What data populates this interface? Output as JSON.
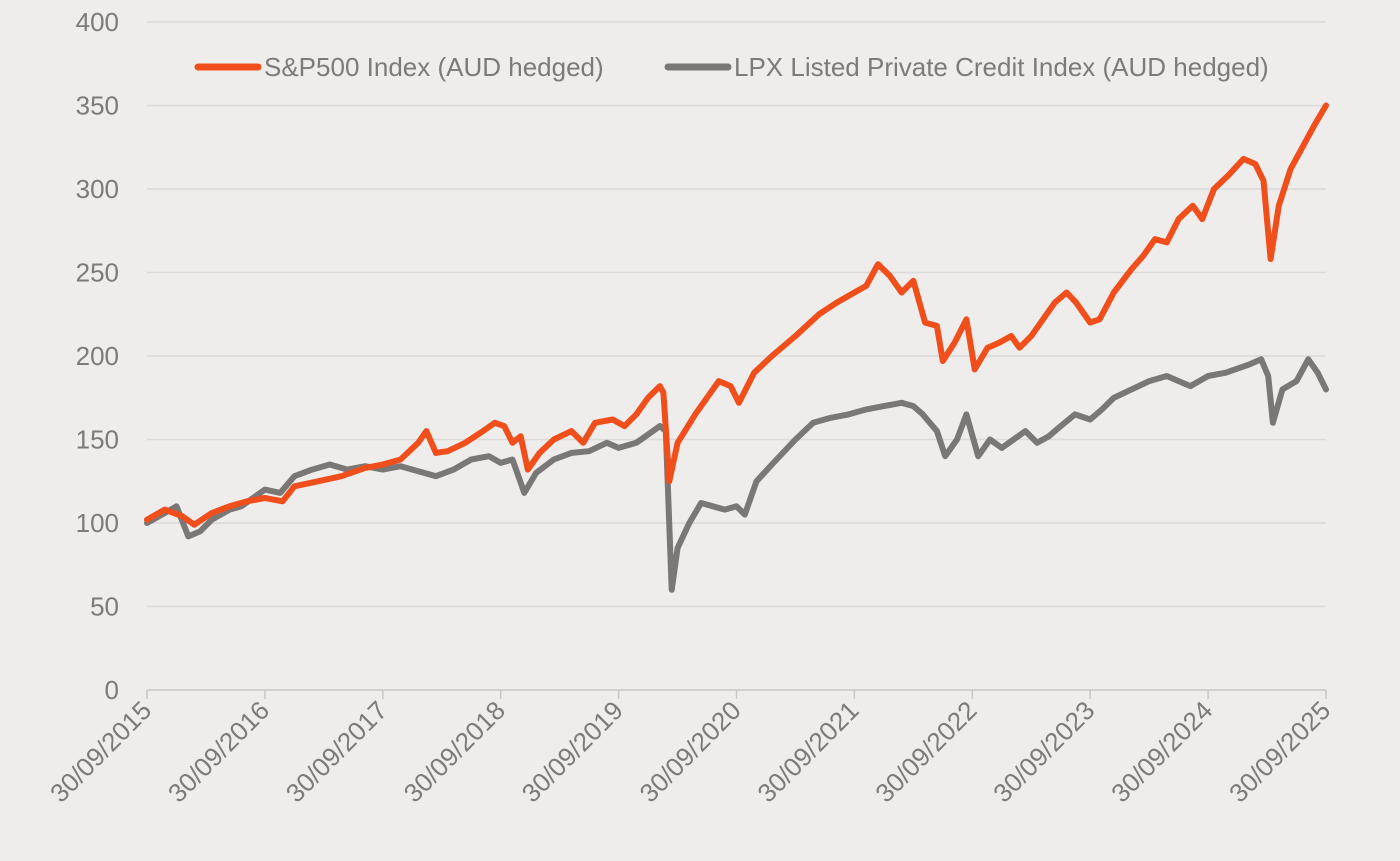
{
  "chart_data": {
    "type": "line",
    "title": "",
    "xlabel": "",
    "ylabel": "",
    "ylim": [
      0,
      400
    ],
    "y_ticks": [
      0,
      50,
      100,
      150,
      200,
      250,
      300,
      350,
      400
    ],
    "x_range": [
      2015.75,
      2025.75
    ],
    "x_ticks": [
      {
        "x": 2015.75,
        "label": "30/09/2015"
      },
      {
        "x": 2016.75,
        "label": "30/09/2016"
      },
      {
        "x": 2017.75,
        "label": "30/09/2017"
      },
      {
        "x": 2018.75,
        "label": "30/09/2018"
      },
      {
        "x": 2019.75,
        "label": "30/09/2019"
      },
      {
        "x": 2020.75,
        "label": "30/09/2020"
      },
      {
        "x": 2021.75,
        "label": "30/09/2021"
      },
      {
        "x": 2022.75,
        "label": "30/09/2022"
      },
      {
        "x": 2023.75,
        "label": "30/09/2023"
      },
      {
        "x": 2024.75,
        "label": "30/09/2024"
      },
      {
        "x": 2025.75,
        "label": "30/09/2025"
      }
    ],
    "grid": true,
    "legend_position": "top",
    "series": [
      {
        "name": "S&P500 Index  (AUD hedged)",
        "color": "#f04e1b",
        "points": [
          [
            2015.75,
            102
          ],
          [
            2015.9,
            108
          ],
          [
            2016.05,
            104
          ],
          [
            2016.15,
            99
          ],
          [
            2016.3,
            106
          ],
          [
            2016.45,
            110
          ],
          [
            2016.6,
            113
          ],
          [
            2016.75,
            115
          ],
          [
            2016.9,
            113
          ],
          [
            2017.0,
            122
          ],
          [
            2017.2,
            125
          ],
          [
            2017.4,
            128
          ],
          [
            2017.6,
            133
          ],
          [
            2017.75,
            135
          ],
          [
            2017.9,
            138
          ],
          [
            2018.05,
            148
          ],
          [
            2018.12,
            155
          ],
          [
            2018.2,
            142
          ],
          [
            2018.3,
            143
          ],
          [
            2018.45,
            148
          ],
          [
            2018.6,
            155
          ],
          [
            2018.7,
            160
          ],
          [
            2018.78,
            158
          ],
          [
            2018.85,
            148
          ],
          [
            2018.92,
            152
          ],
          [
            2018.98,
            132
          ],
          [
            2019.08,
            142
          ],
          [
            2019.2,
            150
          ],
          [
            2019.35,
            155
          ],
          [
            2019.45,
            148
          ],
          [
            2019.55,
            160
          ],
          [
            2019.7,
            162
          ],
          [
            2019.8,
            158
          ],
          [
            2019.9,
            165
          ],
          [
            2020.0,
            175
          ],
          [
            2020.1,
            182
          ],
          [
            2020.13,
            178
          ],
          [
            2020.18,
            125
          ],
          [
            2020.25,
            148
          ],
          [
            2020.4,
            165
          ],
          [
            2020.5,
            175
          ],
          [
            2020.6,
            185
          ],
          [
            2020.7,
            182
          ],
          [
            2020.77,
            172
          ],
          [
            2020.9,
            190
          ],
          [
            2021.05,
            200
          ],
          [
            2021.25,
            212
          ],
          [
            2021.45,
            225
          ],
          [
            2021.6,
            232
          ],
          [
            2021.75,
            238
          ],
          [
            2021.85,
            242
          ],
          [
            2021.95,
            255
          ],
          [
            2022.05,
            248
          ],
          [
            2022.15,
            238
          ],
          [
            2022.25,
            245
          ],
          [
            2022.35,
            220
          ],
          [
            2022.45,
            218
          ],
          [
            2022.5,
            197
          ],
          [
            2022.6,
            208
          ],
          [
            2022.7,
            222
          ],
          [
            2022.77,
            192
          ],
          [
            2022.88,
            205
          ],
          [
            2022.98,
            208
          ],
          [
            2023.08,
            212
          ],
          [
            2023.15,
            205
          ],
          [
            2023.25,
            212
          ],
          [
            2023.35,
            222
          ],
          [
            2023.45,
            232
          ],
          [
            2023.55,
            238
          ],
          [
            2023.63,
            232
          ],
          [
            2023.75,
            220
          ],
          [
            2023.83,
            222
          ],
          [
            2023.95,
            238
          ],
          [
            2024.1,
            252
          ],
          [
            2024.2,
            260
          ],
          [
            2024.3,
            270
          ],
          [
            2024.4,
            268
          ],
          [
            2024.5,
            282
          ],
          [
            2024.62,
            290
          ],
          [
            2024.7,
            282
          ],
          [
            2024.8,
            300
          ],
          [
            2024.92,
            308
          ],
          [
            2025.05,
            318
          ],
          [
            2025.15,
            315
          ],
          [
            2025.22,
            305
          ],
          [
            2025.28,
            258
          ],
          [
            2025.35,
            290
          ],
          [
            2025.45,
            312
          ],
          [
            2025.55,
            325
          ],
          [
            2025.65,
            338
          ],
          [
            2025.75,
            350
          ]
        ]
      },
      {
        "name": "LPX Listed Private Credit  Index (AUD hedged)",
        "color": "#7a7876",
        "points": [
          [
            2015.75,
            100
          ],
          [
            2015.9,
            106
          ],
          [
            2016.0,
            110
          ],
          [
            2016.1,
            92
          ],
          [
            2016.2,
            95
          ],
          [
            2016.3,
            102
          ],
          [
            2016.45,
            108
          ],
          [
            2016.55,
            110
          ],
          [
            2016.65,
            115
          ],
          [
            2016.75,
            120
          ],
          [
            2016.88,
            118
          ],
          [
            2017.0,
            128
          ],
          [
            2017.15,
            132
          ],
          [
            2017.3,
            135
          ],
          [
            2017.45,
            132
          ],
          [
            2017.6,
            134
          ],
          [
            2017.75,
            132
          ],
          [
            2017.9,
            134
          ],
          [
            2018.1,
            130
          ],
          [
            2018.2,
            128
          ],
          [
            2018.35,
            132
          ],
          [
            2018.5,
            138
          ],
          [
            2018.65,
            140
          ],
          [
            2018.75,
            136
          ],
          [
            2018.85,
            138
          ],
          [
            2018.95,
            118
          ],
          [
            2019.05,
            130
          ],
          [
            2019.2,
            138
          ],
          [
            2019.35,
            142
          ],
          [
            2019.5,
            143
          ],
          [
            2019.65,
            148
          ],
          [
            2019.75,
            145
          ],
          [
            2019.9,
            148
          ],
          [
            2020.0,
            153
          ],
          [
            2020.1,
            158
          ],
          [
            2020.15,
            155
          ],
          [
            2020.2,
            60
          ],
          [
            2020.25,
            85
          ],
          [
            2020.35,
            100
          ],
          [
            2020.45,
            112
          ],
          [
            2020.55,
            110
          ],
          [
            2020.65,
            108
          ],
          [
            2020.75,
            110
          ],
          [
            2020.82,
            105
          ],
          [
            2020.92,
            125
          ],
          [
            2021.05,
            135
          ],
          [
            2021.25,
            150
          ],
          [
            2021.4,
            160
          ],
          [
            2021.55,
            163
          ],
          [
            2021.7,
            165
          ],
          [
            2021.85,
            168
          ],
          [
            2022.0,
            170
          ],
          [
            2022.15,
            172
          ],
          [
            2022.25,
            170
          ],
          [
            2022.33,
            165
          ],
          [
            2022.45,
            155
          ],
          [
            2022.52,
            140
          ],
          [
            2022.62,
            150
          ],
          [
            2022.7,
            165
          ],
          [
            2022.8,
            140
          ],
          [
            2022.9,
            150
          ],
          [
            2023.0,
            145
          ],
          [
            2023.1,
            150
          ],
          [
            2023.2,
            155
          ],
          [
            2023.3,
            148
          ],
          [
            2023.4,
            152
          ],
          [
            2023.5,
            158
          ],
          [
            2023.62,
            165
          ],
          [
            2023.75,
            162
          ],
          [
            2023.85,
            168
          ],
          [
            2023.95,
            175
          ],
          [
            2024.1,
            180
          ],
          [
            2024.25,
            185
          ],
          [
            2024.4,
            188
          ],
          [
            2024.5,
            185
          ],
          [
            2024.6,
            182
          ],
          [
            2024.75,
            188
          ],
          [
            2024.9,
            190
          ],
          [
            2025.1,
            195
          ],
          [
            2025.2,
            198
          ],
          [
            2025.26,
            188
          ],
          [
            2025.3,
            160
          ],
          [
            2025.38,
            180
          ],
          [
            2025.5,
            185
          ],
          [
            2025.6,
            198
          ],
          [
            2025.68,
            190
          ],
          [
            2025.75,
            180
          ]
        ]
      }
    ]
  }
}
